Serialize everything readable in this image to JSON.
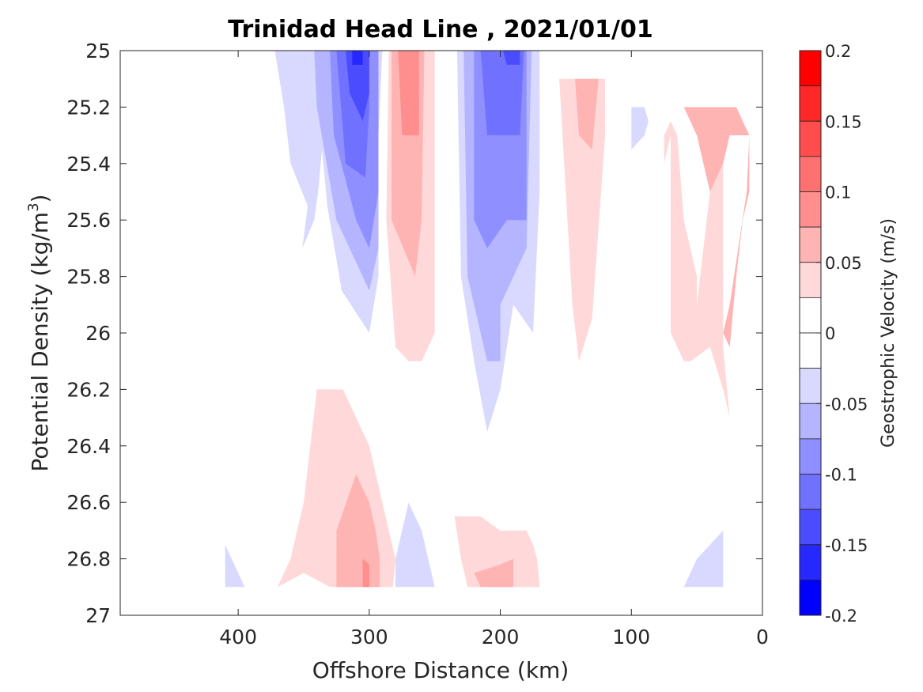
{
  "chart_data": {
    "type": "contour",
    "title": "Trinidad Head Line , 2021/01/01",
    "xlabel": "Offshore Distance (km)",
    "ylabel_main": "Potential Density (kg/m",
    "ylabel_sup": "3",
    "ylabel_end": ")",
    "xlim": [
      490,
      0
    ],
    "ylim": [
      25,
      27
    ],
    "x_ticks": [
      400,
      300,
      200,
      100,
      0
    ],
    "y_ticks": [
      25,
      25.2,
      25.4,
      25.6,
      25.8,
      26,
      26.2,
      26.4,
      26.6,
      26.8,
      27
    ],
    "y_tick_labels": [
      "25",
      "25.2",
      "25.4",
      "25.6",
      "25.8",
      "26",
      "26.2",
      "26.4",
      "26.6",
      "26.8",
      "27"
    ],
    "colorbar": {
      "label": "Geostrophic Velocity (m/s)",
      "range": [
        -0.2,
        0.2
      ],
      "ticks": [
        0.2,
        0.15,
        0.1,
        0.05,
        0,
        -0.05,
        -0.1,
        -0.15,
        -0.2
      ],
      "tick_labels": [
        "0.2",
        "0.15",
        "0.1",
        "0.05",
        "0",
        "-0.05",
        "-0.1",
        "-0.15",
        "-0.2"
      ],
      "levels": [
        {
          "lo": 0.175,
          "hi": 0.2,
          "color": "#ff0000"
        },
        {
          "lo": 0.15,
          "hi": 0.175,
          "color": "#ff2727"
        },
        {
          "lo": 0.125,
          "hi": 0.15,
          "color": "#ff4c4c"
        },
        {
          "lo": 0.1,
          "hi": 0.125,
          "color": "#ff7171"
        },
        {
          "lo": 0.075,
          "hi": 0.1,
          "color": "#ff8f8f"
        },
        {
          "lo": 0.05,
          "hi": 0.075,
          "color": "#ffb4b4"
        },
        {
          "lo": 0.025,
          "hi": 0.05,
          "color": "#ffd9d9"
        },
        {
          "lo": 0,
          "hi": 0.025,
          "color": "#ffffff"
        },
        {
          "lo": -0.025,
          "hi": 0,
          "color": "#ffffff"
        },
        {
          "lo": -0.05,
          "hi": -0.025,
          "color": "#d9d9ff"
        },
        {
          "lo": -0.075,
          "hi": -0.05,
          "color": "#b4b4ff"
        },
        {
          "lo": -0.1,
          "hi": -0.075,
          "color": "#8f8fff"
        },
        {
          "lo": -0.125,
          "hi": -0.1,
          "color": "#7171ff"
        },
        {
          "lo": -0.15,
          "hi": -0.125,
          "color": "#4c4cff"
        },
        {
          "lo": -0.175,
          "hi": -0.15,
          "color": "#2727ff"
        },
        {
          "lo": -0.2,
          "hi": -0.175,
          "color": "#0000ff"
        }
      ]
    },
    "regions": [
      {
        "id": "b-outer-a",
        "color": "#d9d9ff",
        "pts": [
          [
            372,
            25
          ],
          [
            365,
            25.2
          ],
          [
            360,
            25.4
          ],
          [
            347,
            25.55
          ],
          [
            351,
            25.7
          ],
          [
            342,
            25.6
          ],
          [
            339,
            25.5
          ],
          [
            336,
            25.35
          ],
          [
            332,
            25.55
          ],
          [
            321,
            25.85
          ],
          [
            300,
            26
          ],
          [
            293,
            25.8
          ],
          [
            293,
            25.3
          ],
          [
            290,
            25
          ]
        ]
      },
      {
        "id": "b-ring2-a",
        "color": "#b4b4ff",
        "pts": [
          [
            342,
            25
          ],
          [
            340,
            25.2
          ],
          [
            325,
            25.6
          ],
          [
            300,
            25.85
          ],
          [
            293,
            25.7
          ],
          [
            293,
            25
          ],
          [
            300,
            25
          ]
        ]
      },
      {
        "id": "b-ring3-a",
        "color": "#8f8fff",
        "pts": [
          [
            330,
            25
          ],
          [
            327,
            25.3
          ],
          [
            310,
            25.6
          ],
          [
            300,
            25.7
          ],
          [
            293,
            25.5
          ],
          [
            293,
            25
          ],
          [
            300,
            25
          ]
        ]
      },
      {
        "id": "b-ring4-a",
        "color": "#7171ff",
        "pts": [
          [
            325,
            25
          ],
          [
            318,
            25.4
          ],
          [
            303,
            25.45
          ],
          [
            300,
            25.2
          ],
          [
            300,
            25
          ]
        ]
      },
      {
        "id": "b-ring5-a",
        "color": "#4c4cff",
        "pts": [
          [
            318,
            25
          ],
          [
            315,
            25.15
          ],
          [
            305,
            25.25
          ],
          [
            300,
            25.15
          ],
          [
            300,
            25
          ]
        ]
      },
      {
        "id": "b-ring6-a",
        "color": "#2727ff",
        "pts": [
          [
            313,
            25
          ],
          [
            313,
            25.05
          ],
          [
            305,
            25.05
          ],
          [
            305,
            25
          ]
        ]
      },
      {
        "id": "r-band-b",
        "color": "#ffd9d9",
        "pts": [
          [
            285,
            25
          ],
          [
            287,
            25.6
          ],
          [
            280,
            26.05
          ],
          [
            270,
            26.1
          ],
          [
            260,
            26.1
          ],
          [
            250,
            26
          ],
          [
            250,
            25
          ],
          [
            270,
            25
          ]
        ]
      },
      {
        "id": "r-ring2-b",
        "color": "#ffb4b4",
        "pts": [
          [
            283,
            25
          ],
          [
            283,
            25.6
          ],
          [
            265,
            25.8
          ],
          [
            260,
            25.6
          ],
          [
            258,
            25
          ],
          [
            270,
            25
          ]
        ]
      },
      {
        "id": "r-ring3-b",
        "color": "#ff8f8f",
        "pts": [
          [
            278,
            25
          ],
          [
            275,
            25.3
          ],
          [
            262,
            25.3
          ],
          [
            262,
            25
          ],
          [
            270,
            25
          ]
        ]
      },
      {
        "id": "b-outer-c",
        "color": "#d9d9ff",
        "pts": [
          [
            233,
            25
          ],
          [
            230,
            25.8
          ],
          [
            220,
            26.1
          ],
          [
            210,
            26.35
          ],
          [
            200,
            26.2
          ],
          [
            190,
            25.9
          ],
          [
            175,
            26
          ],
          [
            170,
            25.5
          ],
          [
            170,
            25
          ],
          [
            200,
            25
          ]
        ]
      },
      {
        "id": "b-ring2-c",
        "color": "#b4b4ff",
        "pts": [
          [
            228,
            25
          ],
          [
            225,
            25.8
          ],
          [
            210,
            26.1
          ],
          [
            200,
            26.1
          ],
          [
            200,
            25.9
          ],
          [
            190,
            25.8
          ],
          [
            180,
            25.7
          ],
          [
            176,
            25
          ],
          [
            200,
            25
          ]
        ]
      },
      {
        "id": "b-ring3-c",
        "color": "#8f8fff",
        "pts": [
          [
            220,
            25
          ],
          [
            220,
            25.6
          ],
          [
            210,
            25.7
          ],
          [
            195,
            25.6
          ],
          [
            180,
            25.6
          ],
          [
            180,
            25
          ],
          [
            200,
            25
          ]
        ]
      },
      {
        "id": "b-ring4-c",
        "color": "#7171ff",
        "pts": [
          [
            215,
            25
          ],
          [
            210,
            25.3
          ],
          [
            195,
            25.3
          ],
          [
            185,
            25.3
          ],
          [
            182,
            25
          ],
          [
            200,
            25
          ]
        ]
      },
      {
        "id": "b-ring5-c",
        "color": "#4c4cff",
        "pts": [
          [
            198,
            25
          ],
          [
            195,
            25.05
          ],
          [
            185,
            25.05
          ],
          [
            185,
            25
          ]
        ]
      },
      {
        "id": "r-band-d",
        "color": "#ffd9d9",
        "pts": [
          [
            155,
            25.1
          ],
          [
            150,
            25.5
          ],
          [
            145,
            25.9
          ],
          [
            140,
            26.1
          ],
          [
            130,
            25.95
          ],
          [
            120,
            25.3
          ],
          [
            120,
            25.1
          ]
        ]
      },
      {
        "id": "r-ring2-d",
        "color": "#ffb4b4",
        "pts": [
          [
            143,
            25.1
          ],
          [
            140,
            25.3
          ],
          [
            130,
            25.35
          ],
          [
            125,
            25.1
          ]
        ]
      },
      {
        "id": "b-small-e",
        "color": "#d9d9ff",
        "pts": [
          [
            100,
            25.2
          ],
          [
            100,
            25.35
          ],
          [
            90,
            25.3
          ],
          [
            87,
            25.25
          ],
          [
            90,
            25.2
          ]
        ]
      },
      {
        "id": "r-band-f",
        "color": "#ffd9d9",
        "pts": [
          [
            75,
            25.4
          ],
          [
            70,
            25.3
          ],
          [
            70,
            26
          ],
          [
            60,
            26.1
          ],
          [
            55,
            26.1
          ],
          [
            40,
            26.05
          ],
          [
            30,
            26.2
          ],
          [
            25,
            26.3
          ],
          [
            30,
            26.05
          ],
          [
            30,
            25.4
          ],
          [
            35,
            25.35
          ],
          [
            40,
            25.3
          ],
          [
            40,
            25.5
          ],
          [
            45,
            25.7
          ],
          [
            50,
            25.9
          ],
          [
            50,
            25.8
          ],
          [
            60,
            25.6
          ],
          [
            65,
            25.3
          ],
          [
            70,
            25.25
          ],
          [
            75,
            25.3
          ]
        ]
      },
      {
        "id": "r-ring2-f",
        "color": "#ffb4b4",
        "pts": [
          [
            70,
            25.2
          ],
          [
            60,
            25.2
          ],
          [
            50,
            25.3
          ],
          [
            40,
            25.5
          ],
          [
            30,
            25.4
          ],
          [
            25,
            25.3
          ],
          [
            10,
            25.3
          ],
          [
            12,
            25.5
          ],
          [
            25,
            25.9
          ],
          [
            30,
            26
          ],
          [
            25,
            26.05
          ],
          [
            20,
            25.8
          ],
          [
            15,
            25.6
          ],
          [
            10,
            25.5
          ],
          [
            10,
            25.3
          ],
          [
            20,
            25.2
          ]
        ]
      },
      {
        "id": "r-band-g",
        "color": "#ffd9d9",
        "pts": [
          [
            340,
            26.2
          ],
          [
            320,
            26.2
          ],
          [
            300,
            26.4
          ],
          [
            290,
            26.6
          ],
          [
            280,
            26.8
          ],
          [
            282,
            26.9
          ],
          [
            300,
            26.9
          ],
          [
            330,
            26.9
          ],
          [
            350,
            26.85
          ],
          [
            370,
            26.9
          ],
          [
            360,
            26.8
          ],
          [
            350,
            26.6
          ],
          [
            345,
            26.4
          ]
        ]
      },
      {
        "id": "r-ring2-g",
        "color": "#ffb4b4",
        "pts": [
          [
            310,
            26.5
          ],
          [
            300,
            26.6
          ],
          [
            295,
            26.7
          ],
          [
            292,
            26.8
          ],
          [
            292,
            26.9
          ],
          [
            325,
            26.9
          ],
          [
            325,
            26.7
          ]
        ]
      },
      {
        "id": "r-ring3-g",
        "color": "#ff8f8f",
        "pts": [
          [
            305,
            26.8
          ],
          [
            300,
            26.82
          ],
          [
            300,
            26.9
          ],
          [
            305,
            26.9
          ]
        ]
      },
      {
        "id": "b-small-h",
        "color": "#d9d9ff",
        "pts": [
          [
            280,
            26.8
          ],
          [
            280,
            26.9
          ],
          [
            250,
            26.9
          ],
          [
            260,
            26.7
          ],
          [
            270,
            26.6
          ]
        ]
      },
      {
        "id": "r-band-i",
        "color": "#ffd9d9",
        "pts": [
          [
            235,
            26.65
          ],
          [
            230,
            26.8
          ],
          [
            225,
            26.9
          ],
          [
            200,
            26.9
          ],
          [
            180,
            26.9
          ],
          [
            170,
            26.9
          ],
          [
            172,
            26.8
          ],
          [
            175,
            26.75
          ],
          [
            180,
            26.7
          ],
          [
            200,
            26.7
          ],
          [
            215,
            26.65
          ]
        ]
      },
      {
        "id": "r-ring2-i",
        "color": "#ffb4b4",
        "pts": [
          [
            220,
            26.85
          ],
          [
            215,
            26.9
          ],
          [
            190,
            26.9
          ],
          [
            190,
            26.8
          ],
          [
            200,
            26.82
          ]
        ]
      },
      {
        "id": "b-small-j",
        "color": "#d9d9ff",
        "pts": [
          [
            410,
            26.75
          ],
          [
            410,
            26.9
          ],
          [
            395,
            26.9
          ]
        ]
      },
      {
        "id": "b-small-k",
        "color": "#d9d9ff",
        "pts": [
          [
            60,
            26.9
          ],
          [
            50,
            26.8
          ],
          [
            40,
            26.75
          ],
          [
            30,
            26.7
          ],
          [
            30,
            26.9
          ]
        ]
      },
      {
        "id": "b-tiny-l",
        "color": "#d9d9ff",
        "pts": [
          [
            28,
            26.5
          ],
          [
            27,
            26.6
          ],
          [
            25,
            26.65
          ],
          [
            27,
            26.6
          ]
        ]
      }
    ]
  }
}
